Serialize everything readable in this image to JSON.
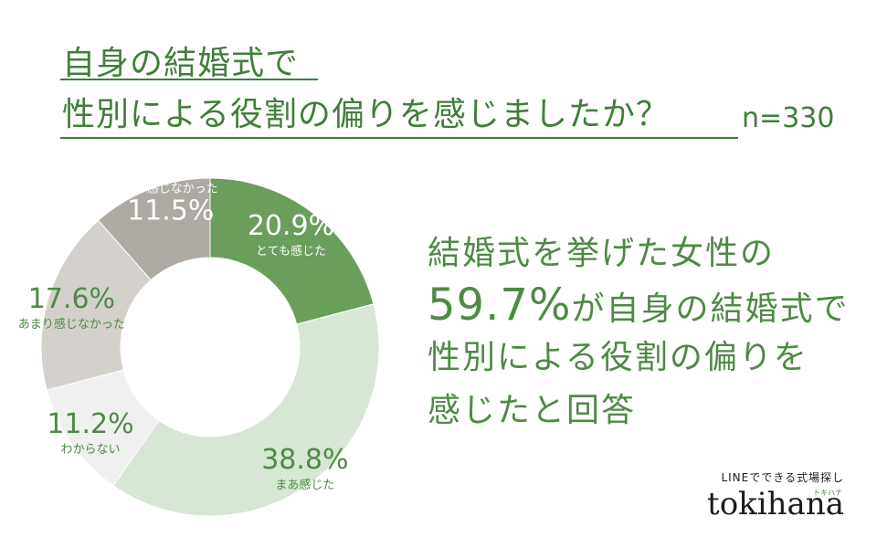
{
  "header": {
    "title_line1": "自身の結婚式で",
    "title_line2": "性別による役割の偏りを感じましたか？",
    "sample_size": "n=330"
  },
  "colors": {
    "title": "#3f7f3a",
    "accent": "#4e8a45",
    "slice_strong_yes": "#6a9e5b",
    "slice_yes": "#d7e6d5",
    "slice_unknown": "#f0f0f0",
    "slice_not_really": "#d4d1cc",
    "slice_not_at_all": "#aea9a2"
  },
  "chart_data": {
    "type": "pie",
    "donut": true,
    "start": "top, clockwise",
    "slices": [
      {
        "label": "とても感じた",
        "value": 20.9,
        "display": "20.9%",
        "color": "#6a9e5b",
        "text_color": "#ffffff"
      },
      {
        "label": "まあ感じた",
        "value": 38.8,
        "display": "38.8%",
        "color": "#d7e6d5",
        "text_color": "#4e8a45"
      },
      {
        "label": "わからない",
        "value": 11.2,
        "display": "11.2%",
        "color": "#f0f0f0",
        "text_color": "#4e8a45"
      },
      {
        "label": "あまり感じなかった",
        "value": 17.6,
        "display": "17.6%",
        "color": "#d4d1cc",
        "text_color": "#4e8a45"
      },
      {
        "label": "全く感じなかった",
        "value": 11.5,
        "display": "11.5%",
        "color": "#aea9a2",
        "text_color": "#ffffff"
      }
    ]
  },
  "summary": {
    "line1": "結婚式を挙げた女性の",
    "line2_number": "59.7%",
    "line2_rest": "が自身の結婚式で",
    "line3": "性別による役割の偏りを",
    "line4": "感じたと回答"
  },
  "brand": {
    "tagline": "LINEでできる式場探し",
    "kana": "トキハナ",
    "name": "tokihana"
  }
}
